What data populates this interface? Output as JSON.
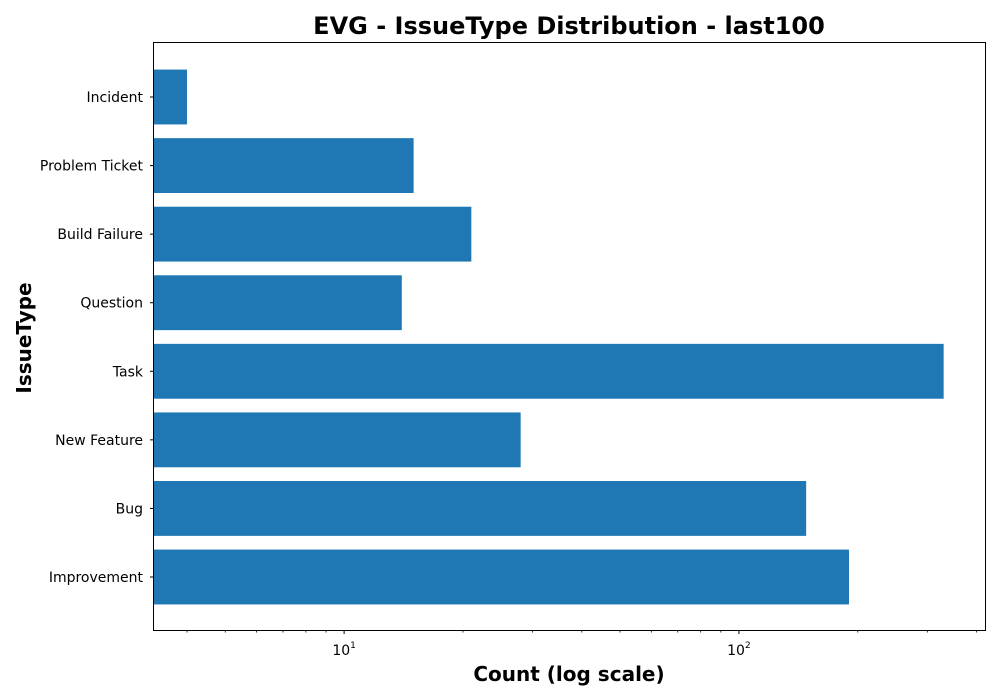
{
  "chart_data": {
    "type": "bar",
    "orientation": "horizontal",
    "title": "EVG - IssueType Distribution - last100",
    "xlabel": "Count (log scale)",
    "ylabel": "IssueType",
    "xscale": "log",
    "xlim": [
      3.3,
      420
    ],
    "x_ticks": [
      {
        "value": 10,
        "base": "10",
        "exponent": "1"
      },
      {
        "value": 100,
        "base": "10",
        "exponent": "2"
      }
    ],
    "categories": [
      "Incident",
      "Problem Ticket",
      "Build Failure",
      "Question",
      "Task",
      "New Feature",
      "Bug",
      "Improvement"
    ],
    "values": [
      4,
      15,
      21,
      14,
      330,
      28,
      148,
      190
    ],
    "bar_color": "#1f77b4",
    "grid": false
  }
}
